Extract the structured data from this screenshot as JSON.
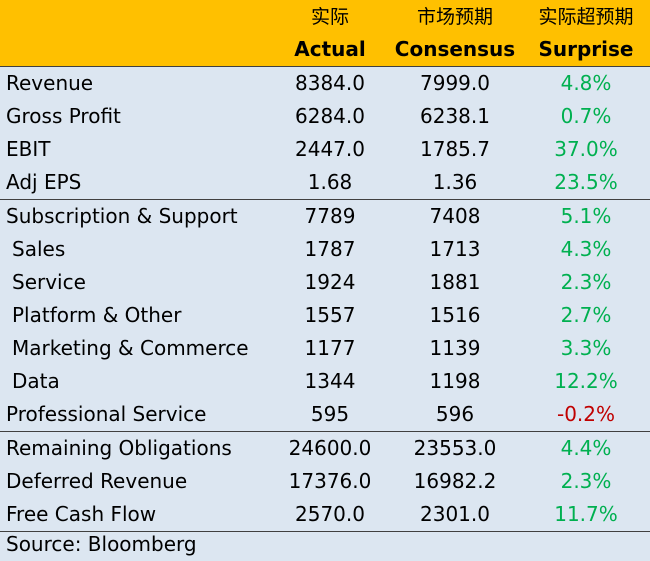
{
  "header": {
    "actual_cn": "实际",
    "actual_en": "Actual",
    "consensus_cn": "市场预期",
    "consensus_en": "Consensus",
    "surprise_cn": "实际超预期",
    "surprise_en": "Surprise"
  },
  "sections": [
    [
      {
        "label": "Revenue",
        "actual": "8384.0",
        "consensus": "7999.0",
        "surprise": "4.8%"
      },
      {
        "label": "Gross Profit",
        "actual": "6284.0",
        "consensus": "6238.1",
        "surprise": "0.7%"
      },
      {
        "label": "EBIT",
        "actual": "2447.0",
        "consensus": "1785.7",
        "surprise": "37.0%"
      },
      {
        "label": "Adj EPS",
        "actual": "1.68",
        "consensus": "1.36",
        "surprise": "23.5%"
      }
    ],
    [
      {
        "label": "Subscription & Support",
        "actual": "7789",
        "consensus": "7408",
        "surprise": "5.1%"
      },
      {
        "label": "Sales",
        "actual": "1787",
        "consensus": "1713",
        "surprise": "4.3%"
      },
      {
        "label": "Service",
        "actual": "1924",
        "consensus": "1881",
        "surprise": "2.3%"
      },
      {
        "label": "Platform & Other",
        "actual": "1557",
        "consensus": "1516",
        "surprise": "2.7%"
      },
      {
        "label": "Marketing & Commerce",
        "actual": "1177",
        "consensus": "1139",
        "surprise": "3.3%"
      },
      {
        "label": "Data",
        "actual": "1344",
        "consensus": "1198",
        "surprise": "12.2%"
      },
      {
        "label": "Professional Service",
        "actual": "595",
        "consensus": "596",
        "surprise": "-0.2%"
      }
    ],
    [
      {
        "label": "Remaining Obligations",
        "actual": "24600.0",
        "consensus": "23553.0",
        "surprise": "4.4%"
      },
      {
        "label": "Deferred Revenue",
        "actual": "17376.0",
        "consensus": "16982.2",
        "surprise": "2.3%"
      },
      {
        "label": "Free Cash Flow",
        "actual": "2570.0",
        "consensus": "2301.0",
        "surprise": "11.7%"
      }
    ]
  ],
  "source": "Source: Bloomberg",
  "colors": {
    "header_bg": "#ffc000",
    "body_bg": "#dce6f1",
    "positive": "#00b050",
    "negative": "#c00000"
  }
}
